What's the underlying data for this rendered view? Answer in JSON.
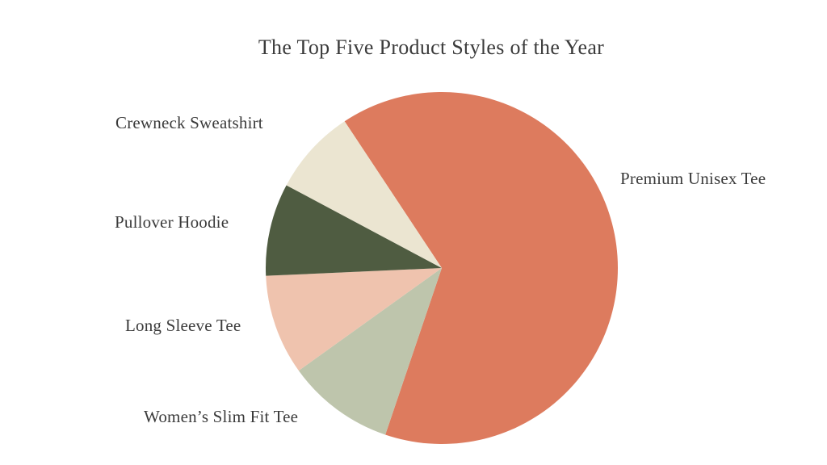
{
  "page": {
    "background_color": "#ffffff",
    "text_color": "#3b3b3b"
  },
  "chart_data": {
    "type": "pie",
    "title": "The Top Five Product Styles of the Year",
    "legend": "none",
    "labels_position": "outside",
    "start_angle_deg": 123.5,
    "direction": "clockwise",
    "slices": [
      {
        "label": "Premium Unisex Tee",
        "value": 64.5,
        "color": "#dd7b5e"
      },
      {
        "label": "Women’s Slim Fit Tee",
        "value": 9.9,
        "color": "#bec5ac"
      },
      {
        "label": "Long Sleeve Tee",
        "value": 9.2,
        "color": "#efc3ae"
      },
      {
        "label": "Pullover Hoodie",
        "value": 8.5,
        "color": "#4f5c41"
      },
      {
        "label": "Crewneck Sweatshirt",
        "value": 7.9,
        "color": "#ebe5d1"
      }
    ]
  }
}
